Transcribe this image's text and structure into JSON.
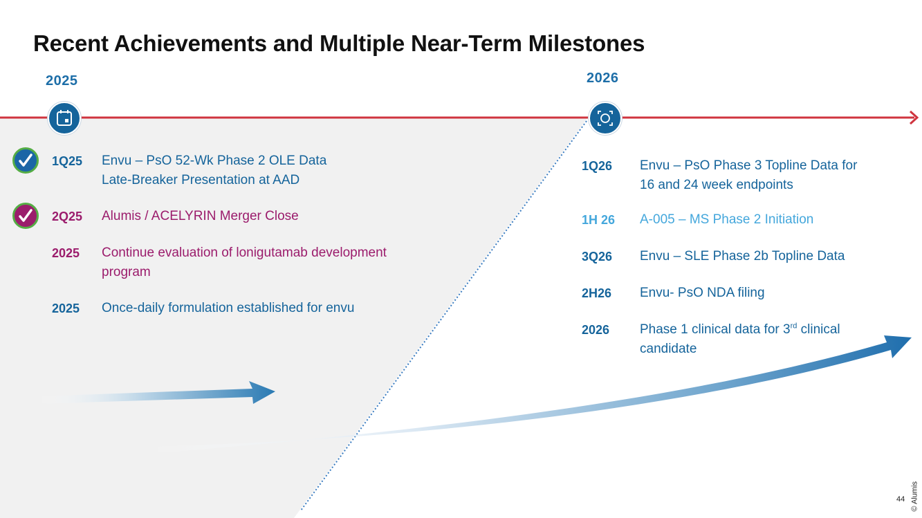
{
  "title": "Recent Achievements and Multiple Near-Term Milestones",
  "timeline": {
    "year_left": "2025",
    "year_right": "2026",
    "icon_left": "calendar-icon",
    "icon_right": "focus-icon",
    "line_color": "#d0343f"
  },
  "left_items": [
    {
      "code": "1Q25",
      "text_line1": "Envu – PsO 52-Wk Phase 2 OLE Data",
      "text_line2": "Late-Breaker Presentation at AAD",
      "status": "completed",
      "color": "#15649b"
    },
    {
      "code": "2Q25",
      "text_line1": "Alumis / ACELYRIN Merger Close",
      "status": "completed",
      "color": "#9b1c6c"
    },
    {
      "code": "2025",
      "text_line1": "Continue evaluation of lonigutamab development",
      "text_line2": "program",
      "color": "#9b1c6c"
    },
    {
      "code": "2025",
      "text_line1": "Once-daily formulation established for envu",
      "color": "#15649b"
    }
  ],
  "right_items": [
    {
      "code": "1Q26",
      "text_line1": "Envu – PsO Phase 3 Topline Data for",
      "text_line2": "16 and 24 week endpoints",
      "color": "#15649b"
    },
    {
      "code": "1H 26",
      "text_line1": "A-005 – MS Phase 2 Initiation",
      "color": "#44a7dc"
    },
    {
      "code": "3Q26",
      "text_line1": "Envu – SLE Phase 2b Topline Data",
      "color": "#15649b"
    },
    {
      "code": "2H26",
      "text_line1": "Envu- PsO NDA filing",
      "color": "#15649b"
    },
    {
      "code": "2026",
      "text_line1_a": "Phase 1 clinical data for 3",
      "text_line1_sup": "rd",
      "text_line1_b": " clinical",
      "text_line2": "candidate",
      "color": "#15649b"
    }
  ],
  "footer": {
    "copyright": "© Alumis",
    "page_number": "44"
  }
}
